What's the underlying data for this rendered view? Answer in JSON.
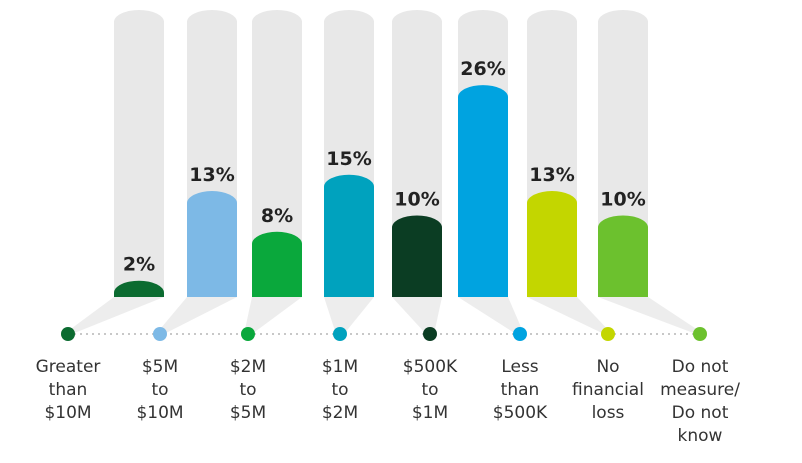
{
  "chart_data": {
    "type": "bar",
    "categories": [
      "Greater\nthan\n$10M",
      "$5M\nto\n$10M",
      "$2M\nto\n$5M",
      "$1M\nto\n$2M",
      "$500K\nto\n$1M",
      "Less\nthan\n$500K",
      "No\nfinancial\nloss",
      "Do not\nmeasure/\nDo not\nknow"
    ],
    "values": [
      2,
      13,
      8,
      15,
      10,
      26,
      13,
      10
    ],
    "value_labels": [
      "2%",
      "13%",
      "8%",
      "15%",
      "10%",
      "26%",
      "13%",
      "10%"
    ],
    "colors": [
      "#0b6b30",
      "#7db9e6",
      "#0aa83c",
      "#00a2be",
      "#0b3d23",
      "#00a3e0",
      "#c3d600",
      "#6cc12e"
    ]
  }
}
